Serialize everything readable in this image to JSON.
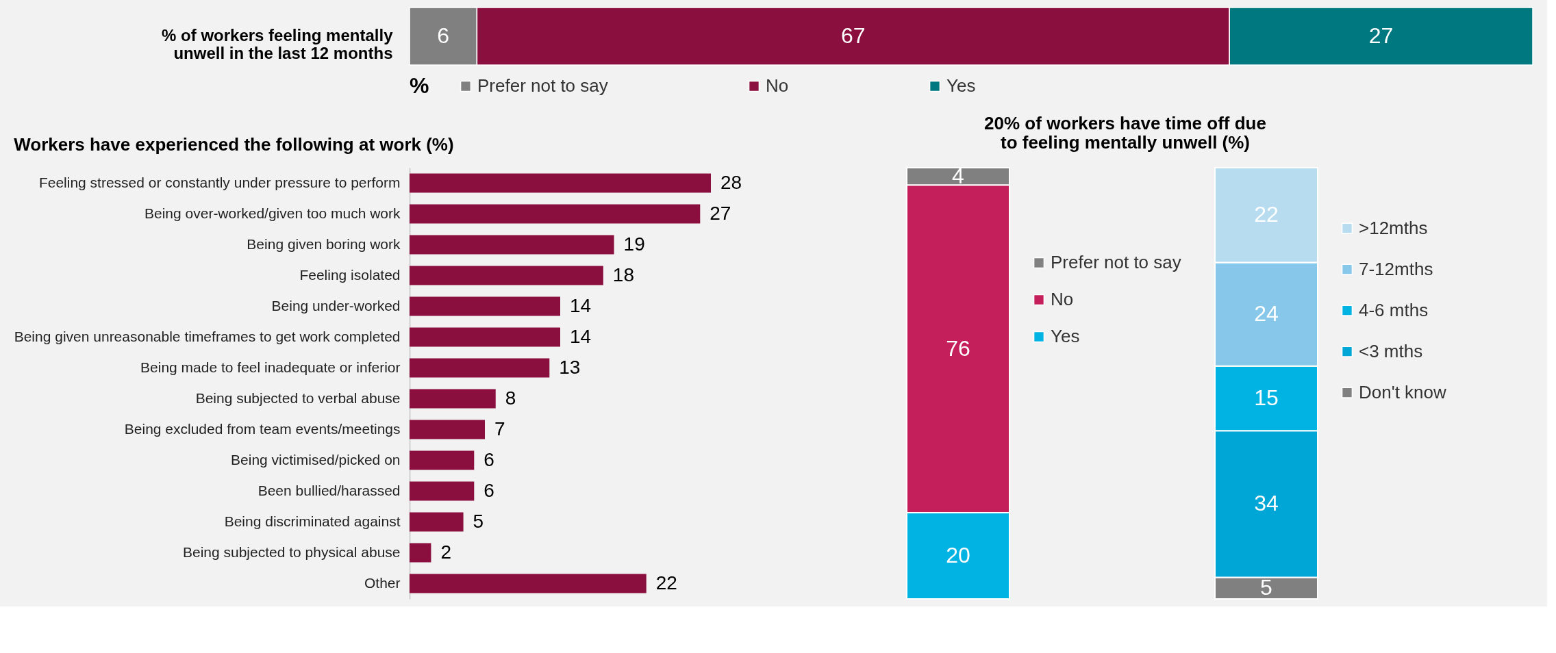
{
  "chart_data": [
    {
      "type": "bar",
      "orientation": "horizontal",
      "stacked": true,
      "data_labels": true,
      "legend": "bottom",
      "legend_title": "%",
      "categories": [
        "% of workers feeling mentally unwell in the last 12 months"
      ],
      "series": [
        {
          "name": "Prefer not to say",
          "color": "#808080",
          "values": [
            6
          ]
        },
        {
          "name": "No",
          "color": "#8b0f3e",
          "values": [
            67
          ]
        },
        {
          "name": "Yes",
          "color": "#00787f",
          "values": [
            27
          ]
        }
      ]
    },
    {
      "type": "bar",
      "orientation": "horizontal",
      "data_labels": true,
      "title": "Workers have experienced the following at work (%)",
      "categories": [
        "Feeling stressed or constantly under pressure to perform",
        "Being over-worked/given too much work",
        "Being given boring work",
        "Feeling isolated",
        "Being under-worked",
        "Being given unreasonable timeframes to get work completed",
        "Being made to feel inadequate or inferior",
        "Being subjected to verbal abuse",
        "Being excluded from team events/meetings",
        "Being victimised/picked on",
        "Been bullied/harassed",
        "Being discriminated against",
        "Being subjected to physical abuse",
        "Other"
      ],
      "values": [
        28,
        27,
        19,
        18,
        14,
        14,
        13,
        8,
        7,
        6,
        6,
        5,
        2,
        22
      ],
      "color": "#8b0f3e"
    },
    {
      "type": "bar",
      "stacked": true,
      "data_labels": true,
      "legend": "right",
      "title": "20% of workers have time off due to feeling mentally unwell (%)",
      "categories": [
        null,
        null
      ],
      "series": [
        {
          "name": "Yes",
          "color": "#00b3e3",
          "values": [
            20,
            null
          ]
        },
        {
          "name": "No",
          "color": "#c41f5a",
          "values": [
            76,
            null
          ]
        },
        {
          "name": "Prefer not to say",
          "color": "#808080",
          "values": [
            4,
            null
          ]
        },
        {
          "name": "Don't know",
          "color": "#808080",
          "values": [
            null,
            5
          ]
        },
        {
          "name": "<3 mths",
          "color": "#00a6d6",
          "values": [
            null,
            34
          ]
        },
        {
          "name": "4-6 mths",
          "color": "#00b3e3",
          "values": [
            null,
            15
          ]
        },
        {
          "name": "7-12mths",
          "color": "#87c8ea",
          "values": [
            null,
            24
          ]
        },
        {
          "name": ">12mths",
          "color": "#b7dcf0",
          "values": [
            null,
            22
          ]
        }
      ]
    }
  ]
}
